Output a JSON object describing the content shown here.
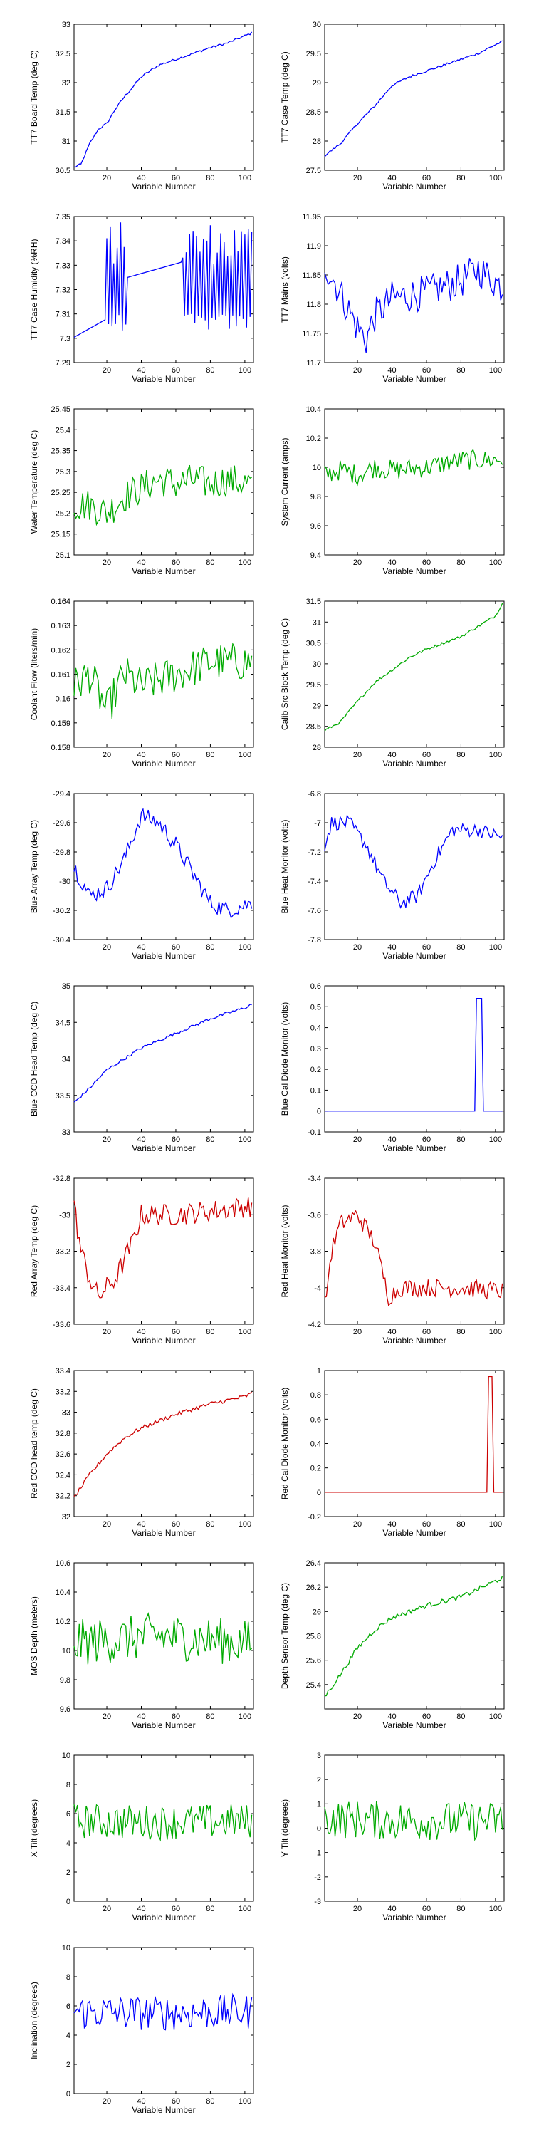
{
  "chart_data": [
    {
      "type": "line",
      "ylabel": "TT7 Board Temp (deg C)",
      "xlabel": "Variable Number",
      "ylim": [
        30.5,
        33
      ],
      "yticks": [
        30.5,
        31,
        31.5,
        32,
        32.5,
        33
      ],
      "color": "#0000ff",
      "kind": "trend",
      "anchors": [
        [
          1,
          30.55
        ],
        [
          5,
          30.6
        ],
        [
          10,
          30.95
        ],
        [
          15,
          31.2
        ],
        [
          20,
          31.3
        ],
        [
          25,
          31.55
        ],
        [
          30,
          31.75
        ],
        [
          40,
          32.1
        ],
        [
          50,
          32.3
        ],
        [
          60,
          32.4
        ],
        [
          70,
          32.5
        ],
        [
          80,
          32.6
        ],
        [
          90,
          32.68
        ],
        [
          100,
          32.8
        ],
        [
          104,
          32.85
        ]
      ],
      "noise": 0.02
    },
    {
      "type": "line",
      "ylabel": "TT7 Case Temp (deg C)",
      "xlabel": "Variable Number",
      "ylim": [
        27.5,
        30
      ],
      "yticks": [
        27.5,
        28,
        28.5,
        29,
        29.5,
        30
      ],
      "color": "#0000ff",
      "kind": "trend",
      "anchors": [
        [
          1,
          27.75
        ],
        [
          10,
          27.95
        ],
        [
          20,
          28.3
        ],
        [
          30,
          28.6
        ],
        [
          40,
          28.95
        ],
        [
          50,
          29.1
        ],
        [
          60,
          29.2
        ],
        [
          70,
          29.3
        ],
        [
          80,
          29.4
        ],
        [
          90,
          29.5
        ],
        [
          100,
          29.65
        ],
        [
          104,
          29.7
        ]
      ],
      "noise": 0.02
    },
    {
      "type": "line",
      "ylabel": "TT7 Case Humidity (%RH)",
      "xlabel": "Variable Number",
      "ylim": [
        7.29,
        7.35
      ],
      "yticks": [
        7.29,
        7.3,
        7.31,
        7.32,
        7.33,
        7.34,
        7.35
      ],
      "color": "#0000ff",
      "kind": "square",
      "base": 7.3,
      "hi": [
        7.33,
        7.348
      ],
      "lo": [
        7.303,
        7.31
      ],
      "start": 20,
      "gap": [
        32,
        64
      ]
    },
    {
      "type": "line",
      "ylabel": "TT7 Mains (volts)",
      "xlabel": "Variable Number",
      "ylim": [
        11.7,
        11.95
      ],
      "yticks": [
        11.7,
        11.75,
        11.8,
        11.85,
        11.9,
        11.95
      ],
      "color": "#0000ff",
      "kind": "noisy",
      "anchors": [
        [
          1,
          11.87
        ],
        [
          10,
          11.82
        ],
        [
          20,
          11.76
        ],
        [
          25,
          11.74
        ],
        [
          30,
          11.78
        ],
        [
          40,
          11.81
        ],
        [
          60,
          11.82
        ],
        [
          80,
          11.84
        ],
        [
          90,
          11.86
        ],
        [
          104,
          11.83
        ]
      ],
      "noise": 0.03
    },
    {
      "type": "line",
      "ylabel": "Water Temperature (deg C)",
      "xlabel": "Variable Number",
      "ylim": [
        25.1,
        25.45
      ],
      "yticks": [
        25.1,
        25.15,
        25.2,
        25.25,
        25.3,
        25.35,
        25.4,
        25.45
      ],
      "color": "#00aa00",
      "kind": "noisy",
      "anchors": [
        [
          1,
          25.22
        ],
        [
          10,
          25.22
        ],
        [
          20,
          25.2
        ],
        [
          30,
          25.24
        ],
        [
          40,
          25.26
        ],
        [
          50,
          25.28
        ],
        [
          60,
          25.27
        ],
        [
          70,
          25.28
        ],
        [
          80,
          25.27
        ],
        [
          90,
          25.28
        ],
        [
          104,
          25.27
        ]
      ],
      "noise": 0.04
    },
    {
      "type": "line",
      "ylabel": "System Current (amps)",
      "xlabel": "Variable Number",
      "ylim": [
        9.4,
        10.4
      ],
      "yticks": [
        9.4,
        9.6,
        9.8,
        10,
        10.2,
        10.4
      ],
      "color": "#00aa00",
      "kind": "noisy",
      "anchors": [
        [
          1,
          9.95
        ],
        [
          10,
          9.98
        ],
        [
          20,
          9.95
        ],
        [
          30,
          10.0
        ],
        [
          40,
          9.98
        ],
        [
          60,
          10.0
        ],
        [
          80,
          10.05
        ],
        [
          104,
          10.05
        ]
      ],
      "noise": 0.07
    },
    {
      "type": "line",
      "ylabel": "Coolant Flow (liters/min)",
      "xlabel": "Variable Number",
      "ylim": [
        0.158,
        0.164
      ],
      "yticks": [
        0.158,
        0.159,
        0.16,
        0.161,
        0.162,
        0.163,
        0.164
      ],
      "color": "#00aa00",
      "kind": "noisy",
      "anchors": [
        [
          1,
          0.1605
        ],
        [
          10,
          0.161
        ],
        [
          20,
          0.1595
        ],
        [
          30,
          0.161
        ],
        [
          40,
          0.1605
        ],
        [
          60,
          0.161
        ],
        [
          80,
          0.1615
        ],
        [
          104,
          0.1615
        ]
      ],
      "noise": 0.0008
    },
    {
      "type": "line",
      "ylabel": "Calib Src Block Temp (deg C)",
      "xlabel": "Variable Number",
      "ylim": [
        28,
        31.5
      ],
      "yticks": [
        28,
        28.5,
        29,
        29.5,
        30,
        30.5,
        31,
        31.5
      ],
      "color": "#00aa00",
      "kind": "trend",
      "anchors": [
        [
          1,
          28.4
        ],
        [
          10,
          28.6
        ],
        [
          20,
          29.1
        ],
        [
          30,
          29.55
        ],
        [
          40,
          29.85
        ],
        [
          50,
          30.15
        ],
        [
          60,
          30.35
        ],
        [
          70,
          30.5
        ],
        [
          80,
          30.65
        ],
        [
          90,
          30.9
        ],
        [
          100,
          31.15
        ],
        [
          104,
          31.45
        ]
      ],
      "noise": 0.03
    },
    {
      "type": "line",
      "ylabel": "Blue Array Temp (deg C)",
      "xlabel": "Variable Number",
      "ylim": [
        -30.4,
        -29.4
      ],
      "yticks": [
        -30.4,
        -30.2,
        -30,
        -29.8,
        -29.6,
        -29.4
      ],
      "color": "#0000ff",
      "kind": "noisy",
      "anchors": [
        [
          1,
          -29.9
        ],
        [
          10,
          -30.1
        ],
        [
          20,
          -30.05
        ],
        [
          30,
          -29.85
        ],
        [
          40,
          -29.55
        ],
        [
          50,
          -29.6
        ],
        [
          60,
          -29.75
        ],
        [
          70,
          -29.95
        ],
        [
          80,
          -30.15
        ],
        [
          90,
          -30.2
        ],
        [
          104,
          -30.15
        ]
      ],
      "noise": 0.06
    },
    {
      "type": "line",
      "ylabel": "Blue Heat Monitor (volts)",
      "xlabel": "Variable Number",
      "ylim": [
        -7.8,
        -6.8
      ],
      "yticks": [
        -7.8,
        -7.6,
        -7.4,
        -7.2,
        -7,
        -6.8
      ],
      "color": "#0000ff",
      "kind": "noisy",
      "anchors": [
        [
          1,
          -7.15
        ],
        [
          5,
          -7.0
        ],
        [
          15,
          -7.0
        ],
        [
          25,
          -7.15
        ],
        [
          35,
          -7.4
        ],
        [
          45,
          -7.55
        ],
        [
          55,
          -7.5
        ],
        [
          65,
          -7.25
        ],
        [
          75,
          -7.05
        ],
        [
          90,
          -7.05
        ],
        [
          104,
          -7.1
        ]
      ],
      "noise": 0.05
    },
    {
      "type": "line",
      "ylabel": "Blue CCD Head Temp (deg C)",
      "xlabel": "Variable Number",
      "ylim": [
        33,
        35
      ],
      "yticks": [
        33,
        33.5,
        34,
        34.5,
        35
      ],
      "color": "#0000ff",
      "kind": "trend",
      "anchors": [
        [
          1,
          33.4
        ],
        [
          10,
          33.6
        ],
        [
          20,
          33.85
        ],
        [
          30,
          34.0
        ],
        [
          40,
          34.15
        ],
        [
          60,
          34.35
        ],
        [
          80,
          34.55
        ],
        [
          100,
          34.7
        ],
        [
          104,
          34.75
        ]
      ],
      "noise": 0.02
    },
    {
      "type": "line",
      "ylabel": "Blue Cal Diode Monitor (volts)",
      "xlabel": "Variable Number",
      "ylim": [
        -0.1,
        0.6
      ],
      "yticks": [
        -0.1,
        0,
        0.1,
        0.2,
        0.3,
        0.4,
        0.5,
        0.6
      ],
      "color": "#0000ff",
      "kind": "spike",
      "base": 0.0,
      "peak": 0.54,
      "pulse": [
        89,
        92
      ]
    },
    {
      "type": "line",
      "ylabel": "Red Array Temp (deg C)",
      "xlabel": "Variable Number",
      "ylim": [
        -33.6,
        -32.8
      ],
      "yticks": [
        -33.6,
        -33.4,
        -33.2,
        -33,
        -32.8
      ],
      "color": "#cc0000",
      "kind": "noisy",
      "anchors": [
        [
          1,
          -32.95
        ],
        [
          5,
          -33.2
        ],
        [
          10,
          -33.35
        ],
        [
          15,
          -33.45
        ],
        [
          25,
          -33.35
        ],
        [
          35,
          -33.15
        ],
        [
          40,
          -33.0
        ],
        [
          60,
          -33.0
        ],
        [
          80,
          -32.98
        ],
        [
          104,
          -32.95
        ]
      ],
      "noise": 0.06
    },
    {
      "type": "line",
      "ylabel": "Red Heat Monitor (volts)",
      "xlabel": "Variable Number",
      "ylim": [
        -4.2,
        -3.4
      ],
      "yticks": [
        -4.2,
        -4,
        -3.8,
        -3.6,
        -3.4
      ],
      "color": "#cc0000",
      "kind": "noisy",
      "anchors": [
        [
          1,
          -4.1
        ],
        [
          5,
          -3.8
        ],
        [
          10,
          -3.65
        ],
        [
          20,
          -3.6
        ],
        [
          30,
          -3.75
        ],
        [
          38,
          -4.05
        ],
        [
          45,
          -4.0
        ],
        [
          60,
          -4.0
        ],
        [
          80,
          -4.0
        ],
        [
          104,
          -4.02
        ]
      ],
      "noise": 0.05
    },
    {
      "type": "line",
      "ylabel": "Red CCD head temp (deg C)",
      "xlabel": "Variable Number",
      "ylim": [
        32,
        33.4
      ],
      "yticks": [
        32,
        32.2,
        32.4,
        32.6,
        32.8,
        33,
        33.2,
        33.4
      ],
      "color": "#cc0000",
      "kind": "trend",
      "anchors": [
        [
          1,
          32.18
        ],
        [
          10,
          32.4
        ],
        [
          20,
          32.6
        ],
        [
          30,
          32.75
        ],
        [
          40,
          32.85
        ],
        [
          60,
          32.98
        ],
        [
          80,
          33.08
        ],
        [
          100,
          33.15
        ],
        [
          104,
          33.18
        ]
      ],
      "noise": 0.02
    },
    {
      "type": "line",
      "ylabel": "Red Cal Diode Monitor (volts)",
      "xlabel": "Variable Number",
      "ylim": [
        -0.2,
        1
      ],
      "yticks": [
        -0.2,
        0,
        0.2,
        0.4,
        0.6,
        0.8,
        1
      ],
      "color": "#cc0000",
      "kind": "spike",
      "base": 0.0,
      "peak": 0.95,
      "pulse": [
        96,
        98
      ]
    },
    {
      "type": "line",
      "ylabel": "MOS Depth  (meters)",
      "xlabel": "Variable Number",
      "ylim": [
        9.6,
        10.6
      ],
      "yticks": [
        9.6,
        9.8,
        10,
        10.2,
        10.4,
        10.6
      ],
      "color": "#00aa00",
      "kind": "noisy",
      "anchors": [
        [
          1,
          10.05
        ],
        [
          50,
          10.1
        ],
        [
          104,
          10.05
        ]
      ],
      "noise": 0.16
    },
    {
      "type": "line",
      "ylabel": "Depth Sensor Temp (deg C)",
      "xlabel": "Variable Number",
      "ylim": [
        25.2,
        26.4
      ],
      "yticks": [
        25.4,
        25.6,
        25.8,
        26,
        26.2,
        26.4
      ],
      "color": "#00aa00",
      "kind": "trend",
      "anchors": [
        [
          1,
          25.3
        ],
        [
          10,
          25.48
        ],
        [
          20,
          25.7
        ],
        [
          30,
          25.85
        ],
        [
          40,
          25.95
        ],
        [
          60,
          26.05
        ],
        [
          80,
          26.12
        ],
        [
          100,
          26.25
        ],
        [
          104,
          26.28
        ]
      ],
      "noise": 0.02
    },
    {
      "type": "line",
      "ylabel": "X Tilt  (degrees)",
      "xlabel": "Variable Number",
      "ylim": [
        0,
        10
      ],
      "yticks": [
        0,
        2,
        4,
        6,
        8,
        10
      ],
      "color": "#00aa00",
      "kind": "noisy",
      "anchors": [
        [
          1,
          5.5
        ],
        [
          50,
          5.4
        ],
        [
          104,
          5.5
        ]
      ],
      "noise": 1.2
    },
    {
      "type": "line",
      "ylabel": "Y Tilt  (degrees)",
      "xlabel": "Variable Number",
      "ylim": [
        -3,
        3
      ],
      "yticks": [
        -3,
        -2,
        -1,
        0,
        1,
        2,
        3
      ],
      "color": "#00aa00",
      "kind": "noisy",
      "anchors": [
        [
          1,
          0.4
        ],
        [
          50,
          0.3
        ],
        [
          104,
          0.3
        ]
      ],
      "noise": 0.8
    },
    {
      "type": "line",
      "ylabel": "Inclination  (degrees)",
      "xlabel": "Variable Number",
      "ylim": [
        0,
        10
      ],
      "yticks": [
        0,
        2,
        4,
        6,
        8,
        10
      ],
      "color": "#0000ff",
      "kind": "noisy",
      "anchors": [
        [
          1,
          5.6
        ],
        [
          50,
          5.5
        ],
        [
          104,
          5.6
        ]
      ],
      "noise": 1.2
    }
  ],
  "xlim": [
    1,
    105
  ],
  "xticks": [
    20,
    40,
    60,
    80,
    100
  ]
}
